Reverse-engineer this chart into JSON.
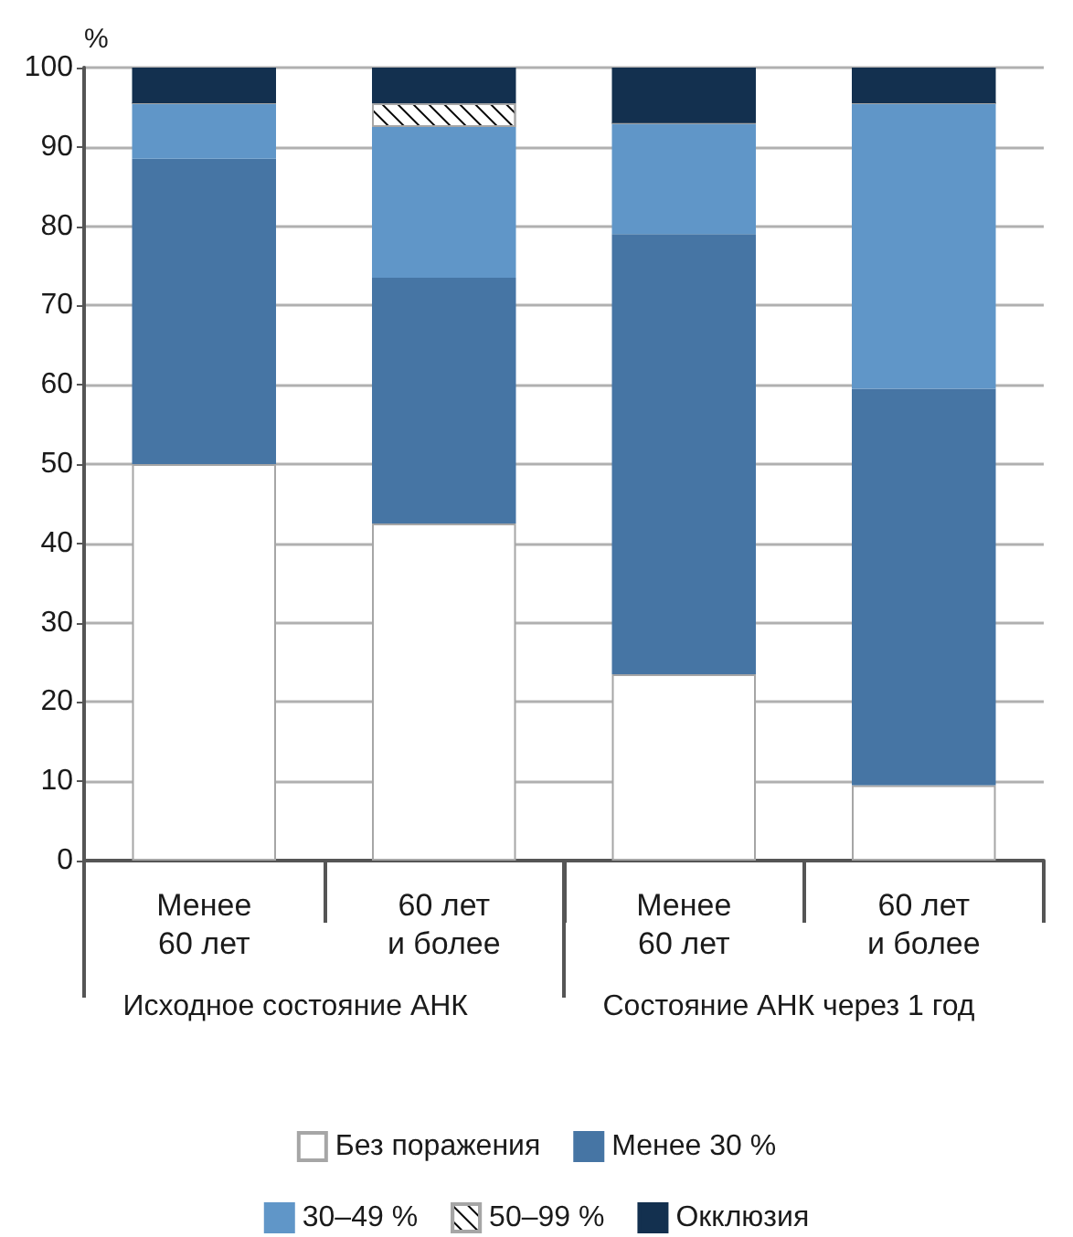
{
  "chart_data": {
    "type": "bar",
    "stacked": true,
    "ylabel": "%",
    "categories": [
      "Менее\n60 лет",
      "60 лет\nи более",
      "Менее\n60 лет",
      "60 лет\nи более"
    ],
    "series": [
      {
        "name": "Без поражения",
        "color": "#ffffff",
        "values": [
          50,
          42.5,
          23.5,
          9.5
        ]
      },
      {
        "name": "Менее 30 %",
        "color": "#4675a4",
        "values": [
          38.5,
          31,
          55.5,
          50
        ]
      },
      {
        "name": "30–49 %",
        "color": "#6096c8",
        "values": [
          7,
          19,
          14,
          36
        ]
      },
      {
        "name": "50–99 %",
        "color": "#ffffff",
        "values": [
          0,
          3,
          0,
          0
        ]
      },
      {
        "name": "Окклюзия",
        "color": "#13304f",
        "values": [
          4.5,
          4.5,
          7,
          4.5
        ]
      }
    ],
    "ylim": [
      0,
      100
    ],
    "yticks": [
      0,
      10,
      20,
      30,
      40,
      50,
      60,
      70,
      80,
      90,
      100
    ],
    "grid": "y",
    "legend": "bottom",
    "annotations": [
      "Исходное состояние АНК",
      "Состояние АНК через 1 год"
    ]
  }
}
